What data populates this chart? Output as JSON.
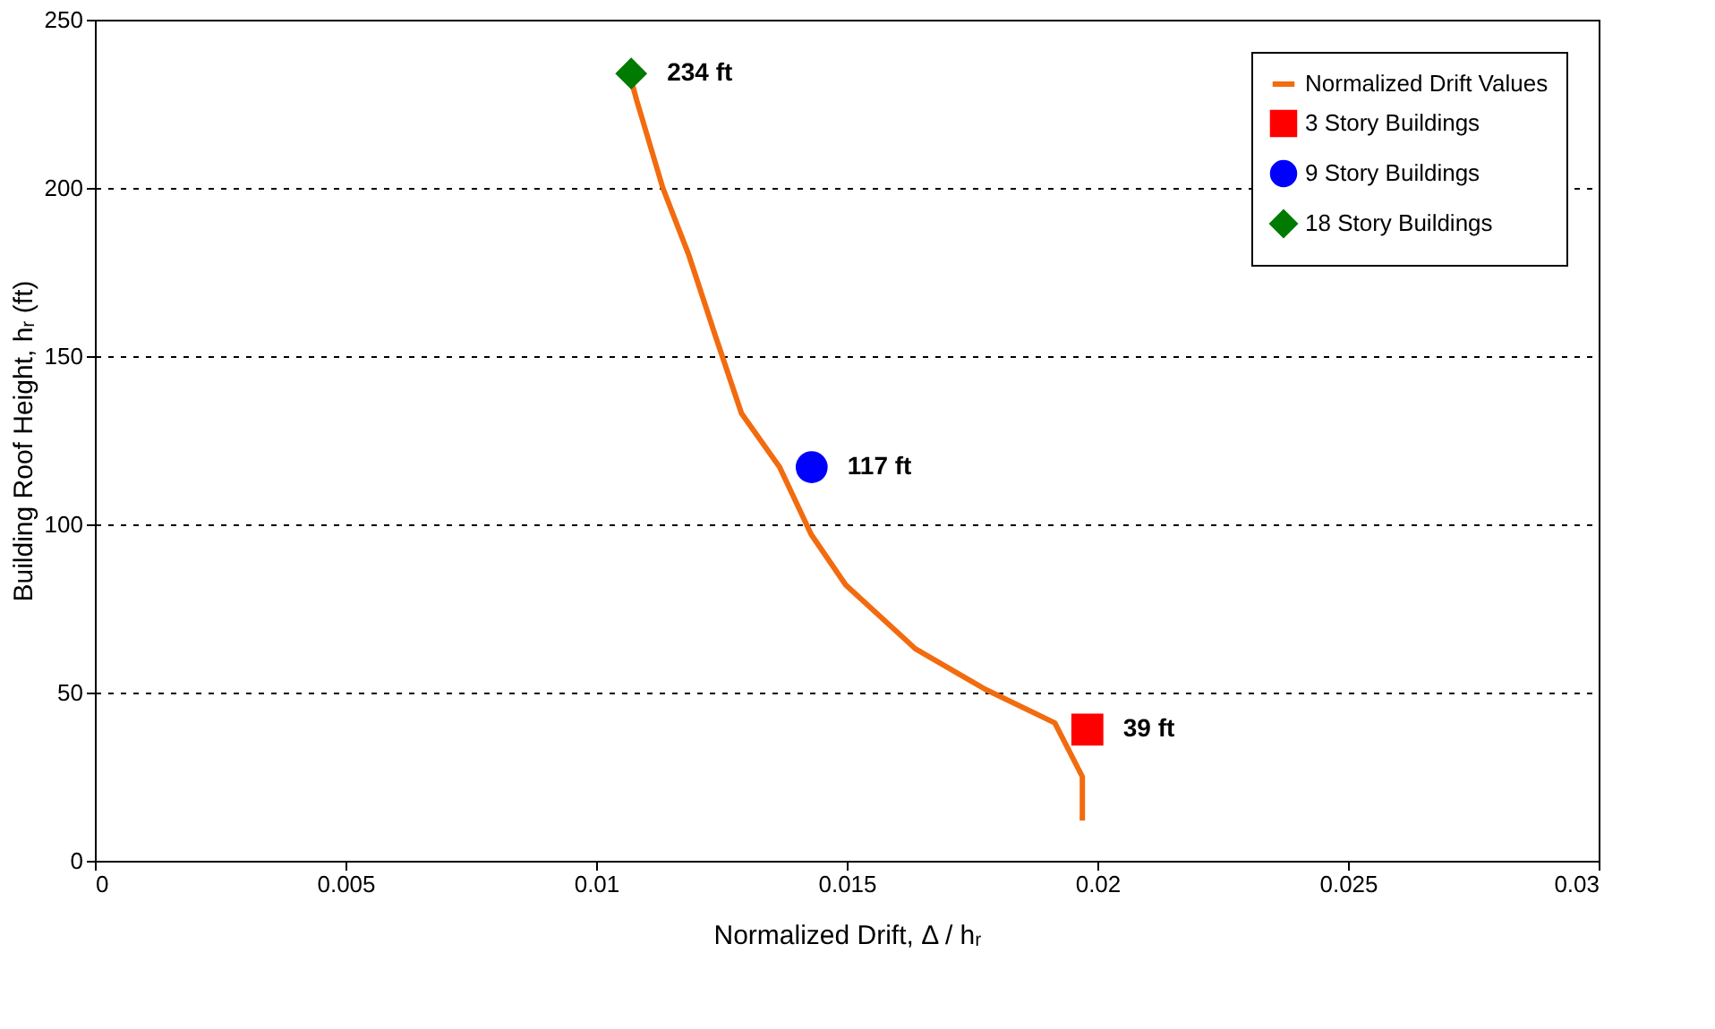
{
  "chart_data": {
    "type": "line",
    "xlabel": "Normalized Drift, Δ / hᵣ",
    "ylabel": "Building Roof Height, hᵣ (ft)",
    "xlim": [
      0,
      0.03
    ],
    "xticks": [
      0,
      0.005,
      0.01,
      0.015,
      0.02,
      0.025,
      0.03
    ],
    "ylim": [
      0,
      250
    ],
    "yticks": [
      0,
      50,
      100,
      150,
      200,
      250
    ],
    "grid": "y",
    "legend": "top right",
    "series": [
      {
        "name": "Normalized Drift Values",
        "marker": "none",
        "line_style": "solid",
        "color": "#f26b0f",
        "x": [
          0.0197,
          0.0197,
          0.01915,
          0.01776,
          0.01637,
          0.01498,
          0.01429,
          0.01366,
          0.0129,
          0.01238,
          0.01185,
          0.01133,
          0.01081,
          0.0107
        ],
        "values": [
          12,
          25,
          41,
          51,
          63,
          82,
          97,
          117,
          133,
          156,
          180,
          200,
          226,
          232
        ]
      },
      {
        "name": "3 Story Buildings",
        "type": "scatter",
        "marker": "square",
        "color": "#ff0000",
        "x": [
          0.0198
        ],
        "values": [
          39
        ]
      },
      {
        "name": "9 Story Buildings",
        "type": "scatter",
        "marker": "circle",
        "color": "#0000ff",
        "x": [
          0.0143
        ],
        "values": [
          117
        ]
      },
      {
        "name": "18 Story Buildings",
        "type": "scatter",
        "marker": "diamond",
        "color": "#007a00",
        "x": [
          0.0107
        ],
        "values": [
          234
        ]
      }
    ],
    "annotations": [
      {
        "text": "234 ft",
        "x": 0.0107,
        "y": 234
      },
      {
        "text": "117 ft",
        "x": 0.0143,
        "y": 117
      },
      {
        "text": "39 ft",
        "x": 0.0198,
        "y": 39
      }
    ]
  }
}
